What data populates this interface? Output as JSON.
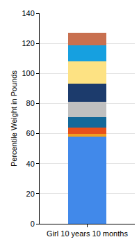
{
  "chart_data": {
    "type": "bar",
    "stacked": true,
    "y_label": "Percentile Weight in Pounds",
    "categories": [
      "Girl 10 years 10 months"
    ],
    "series": [
      {
        "color": "#4189ea",
        "values": [
          58
        ]
      },
      {
        "color": "#f0a020",
        "values": [
          2
        ]
      },
      {
        "color": "#e8501a",
        "values": [
          4
        ]
      },
      {
        "color": "#13699a",
        "values": [
          7
        ]
      },
      {
        "color": "#c0c0c0",
        "values": [
          10
        ]
      },
      {
        "color": "#1c3b6c",
        "values": [
          12
        ]
      },
      {
        "color": "#fde283",
        "values": [
          15
        ]
      },
      {
        "color": "#16a0e0",
        "values": [
          10.5
        ]
      },
      {
        "color": "#c87050",
        "values": [
          8.5
        ]
      }
    ],
    "ylim": [
      0,
      140
    ],
    "yticks": [
      0,
      20,
      40,
      60,
      80,
      100,
      120,
      140
    ],
    "grid": true
  }
}
